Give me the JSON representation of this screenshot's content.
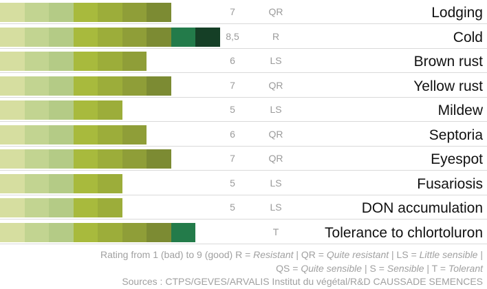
{
  "chart_data": {
    "type": "bar",
    "orientation": "horizontal",
    "scale_segments": 9,
    "segment_colors": [
      "#d6dea0",
      "#c2d491",
      "#b4cb86",
      "#a8ba3d",
      "#9cad3a",
      "#8f9e38",
      "#7c8b33",
      "#237b4a",
      "#153f26"
    ],
    "rows": [
      {
        "label": "Lodging",
        "value": 7,
        "value_text": "7",
        "code": "QR"
      },
      {
        "label": "Cold",
        "value": 8.5,
        "value_text": "8,5",
        "code": "R"
      },
      {
        "label": "Brown rust",
        "value": 6,
        "value_text": "6",
        "code": "LS"
      },
      {
        "label": "Yellow rust",
        "value": 7,
        "value_text": "7",
        "code": "QR"
      },
      {
        "label": "Mildew",
        "value": 5,
        "value_text": "5",
        "code": "LS"
      },
      {
        "label": "Septoria",
        "value": 6,
        "value_text": "6",
        "code": "QR"
      },
      {
        "label": "Eyespot",
        "value": 7,
        "value_text": "7",
        "code": "QR"
      },
      {
        "label": "Fusariosis",
        "value": 5,
        "value_text": "5",
        "code": "LS"
      },
      {
        "label": "DON accumulation",
        "value": 5,
        "value_text": "5",
        "code": "LS"
      },
      {
        "label": "Tolerance to chlortoluron",
        "value": 8,
        "value_text": "",
        "code": "T"
      }
    ]
  },
  "footer": {
    "line1_a": "Rating from 1 (bad) to 9 (good) R = ",
    "line1_b": "Resistant",
    "line1_c": " | QR = ",
    "line1_d": "Quite resistant",
    "line1_e": " | LS = ",
    "line1_f": "Little sensible",
    "line1_g": " |",
    "line2_a": "QS = ",
    "line2_b": "Quite sensible",
    "line2_c": " | S = ",
    "line2_d": "Sensible",
    "line2_e": " | T = ",
    "line2_f": "Tolerant",
    "sources": "Sources : CTPS/GEVES/ARVALIS Institut du végétal/R&D CAUSSADE SEMENCES"
  }
}
